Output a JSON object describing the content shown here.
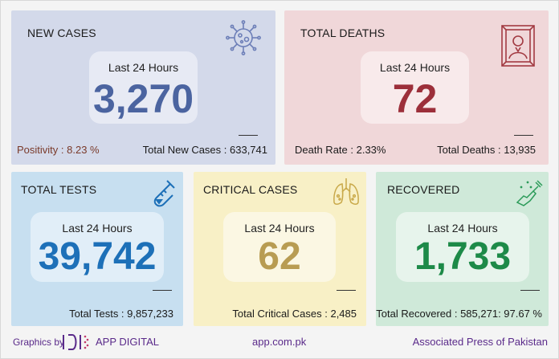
{
  "new_cases": {
    "title": "NEW CASES",
    "period": "Last 24 Hours",
    "value": "3,270",
    "positivity": "Positivity : 8.23 %",
    "total": "Total New Cases : 633,741",
    "icon": "virus-icon"
  },
  "total_deaths": {
    "title": "TOTAL DEATHS",
    "period": "Last 24 Hours",
    "value": "72",
    "rate": "Death Rate : 2.33%",
    "total": "Total Deaths : 13,935",
    "icon": "portrait-frame-icon"
  },
  "total_tests": {
    "title": "TOTAL TESTS",
    "period": "Last 24 Hours",
    "value": "39,742",
    "total": "Total Tests : 9,857,233",
    "icon": "test-tube-icon"
  },
  "critical_cases": {
    "title": "CRITICAL CASES",
    "period": "Last 24 Hours",
    "value": "62",
    "total": "Total Critical Cases : 2,485",
    "icon": "lungs-icon"
  },
  "recovered": {
    "title": "RECOVERED",
    "period": "Last 24 Hours",
    "value": "1,733",
    "total": "Total Recovered : 585,271: 97.67 %",
    "icon": "hand-sanitizer-icon"
  },
  "footer": {
    "graphics_by": "Graphics by",
    "brand": "APP DIGITAL",
    "site": "app.com.pk",
    "agency": "Associated Press of Pakistan"
  },
  "colors": {
    "new_cases": "#4b64a0",
    "deaths": "#9c2f3a",
    "tests": "#1d70b8",
    "critical": "#b89c52",
    "recovered": "#1d8a48",
    "footer_text": "#5a2a8a"
  }
}
